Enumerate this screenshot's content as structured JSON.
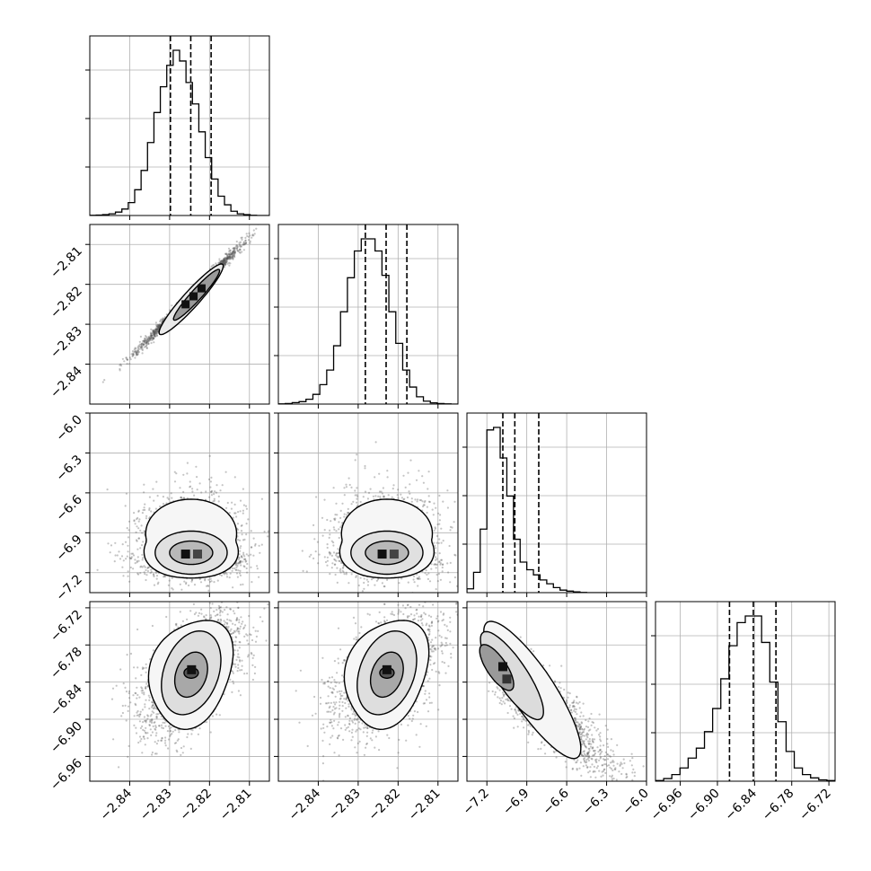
{
  "chart_data": {
    "type": "corner",
    "grid": true,
    "parameters": [
      {
        "range": [
          -2.85,
          -2.805
        ],
        "ticks": [
          -2.84,
          -2.83,
          -2.82,
          -2.81
        ],
        "tick_labels": [
          "−2.84",
          "−2.83",
          "−2.82",
          "−2.81"
        ],
        "quantiles": [
          -2.8298,
          -2.8247,
          -2.8196
        ],
        "hist": {
          "min": -2.85,
          "max": -2.805,
          "counts": [
            1,
            2,
            4,
            8,
            16,
            30,
            60,
            120,
            210,
            340,
            480,
            600,
            700,
            770,
            720,
            620,
            520,
            390,
            270,
            170,
            90,
            50,
            20,
            8,
            4,
            1,
            0,
            0
          ]
        }
      },
      {
        "range": [
          -2.85,
          -2.805
        ],
        "ticks": [
          -2.84,
          -2.83,
          -2.82,
          -2.81
        ],
        "tick_labels": [
          "−2.84",
          "−2.83",
          "−2.82",
          "−2.81"
        ],
        "quantiles": [
          -2.8282,
          -2.823,
          -2.8178
        ],
        "hist": {
          "min": -2.85,
          "max": -2.805,
          "counts": [
            1,
            2,
            6,
            10,
            20,
            40,
            80,
            140,
            240,
            380,
            520,
            630,
            680,
            680,
            630,
            530,
            380,
            250,
            140,
            70,
            30,
            12,
            5,
            2,
            1,
            0
          ]
        }
      },
      {
        "range": [
          -7.35,
          -6.0
        ],
        "ticks": [
          -7.2,
          -6.9,
          -6.6,
          -6.3,
          -6.0
        ],
        "tick_labels": [
          "−7.2",
          "−6.9",
          "−6.6",
          "−6.3",
          "−6.0"
        ],
        "quantiles": [
          -7.08,
          -6.99,
          -6.81
        ],
        "hist": {
          "min": -7.35,
          "max": -6.0,
          "counts": [
            15,
            80,
            250,
            640,
            650,
            530,
            380,
            210,
            120,
            90,
            70,
            50,
            35,
            20,
            10,
            6,
            3,
            1,
            0,
            0,
            0,
            0,
            0,
            0,
            0,
            0,
            0
          ]
        }
      },
      {
        "range": [
          -7.0,
          -6.71
        ],
        "ticks": [
          -6.96,
          -6.9,
          -6.84,
          -6.78,
          -6.72
        ],
        "tick_labels": [
          "−6.96",
          "−6.90",
          "−6.84",
          "−6.78",
          "−6.72"
        ],
        "quantiles": [
          -6.8805,
          -6.842,
          -6.8055
        ],
        "hist": {
          "min": -7.0,
          "max": -6.71,
          "counts": [
            2,
            8,
            20,
            40,
            70,
            100,
            150,
            220,
            310,
            410,
            480,
            500,
            500,
            420,
            300,
            180,
            90,
            40,
            20,
            10,
            4,
            2
          ]
        }
      }
    ],
    "pairs": [
      {
        "row": 1,
        "col": 0,
        "type": "elongated",
        "center": [
          -2.8247,
          -2.823
        ],
        "spread_x": 0.0051,
        "spread_y": 0.0052,
        "corr": 0.99,
        "peaks": [
          [
            -2.826,
            -2.825
          ],
          [
            -2.824,
            -2.823
          ],
          [
            -2.822,
            -2.821
          ]
        ],
        "levels": [
          [
            0.0102,
            0.0008
          ],
          [
            0.0068,
            0.0005
          ]
        ]
      },
      {
        "row": 2,
        "col": 0,
        "type": "blob",
        "center": [
          -2.8246,
          -7.05
        ],
        "spread_x": 0.0052,
        "spread_y_low": 0.08,
        "spread_y_high": 0.2,
        "peaks": [
          [
            -2.826,
            -7.06
          ],
          [
            -2.823,
            -7.06
          ]
        ]
      },
      {
        "row": 2,
        "col": 1,
        "type": "blob",
        "center": [
          -2.8228,
          -7.05
        ],
        "spread_x": 0.0052,
        "spread_y_low": 0.08,
        "spread_y_high": 0.2,
        "peaks": [
          [
            -2.824,
            -7.06
          ],
          [
            -2.821,
            -7.06
          ]
        ]
      },
      {
        "row": 3,
        "col": 0,
        "type": "blob",
        "center": [
          -2.8246,
          -6.825
        ],
        "spread_x": 0.005,
        "spread_y": 0.038,
        "corr": 0.55,
        "peaks": [
          [
            -2.8245,
            -6.82
          ]
        ]
      },
      {
        "row": 3,
        "col": 1,
        "type": "blob",
        "center": [
          -2.8228,
          -6.825
        ],
        "spread_x": 0.005,
        "spread_y": 0.038,
        "corr": 0.5,
        "peaks": [
          [
            -2.8228,
            -6.82
          ]
        ]
      },
      {
        "row": 3,
        "col": 2,
        "type": "skew",
        "center": [
          -7.04,
          -6.815
        ],
        "peaks": [
          [
            -7.08,
            -6.815
          ],
          [
            -7.05,
            -6.835
          ]
        ]
      }
    ]
  }
}
